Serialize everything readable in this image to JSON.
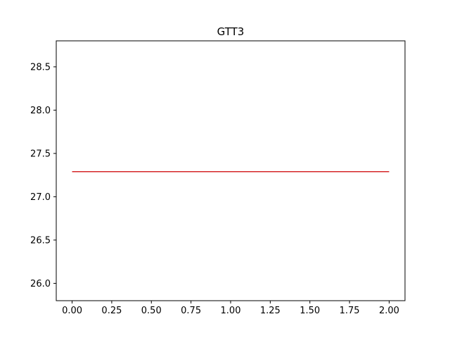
{
  "chart_data": {
    "type": "line",
    "title": "GTT3",
    "xlabel": "",
    "ylabel": "",
    "xlim": [
      -0.1,
      2.1
    ],
    "ylim": [
      25.8,
      28.8
    ],
    "xticks": [
      0.0,
      0.25,
      0.5,
      0.75,
      1.0,
      1.25,
      1.5,
      1.75,
      2.0
    ],
    "xtick_labels": [
      "0.00",
      "0.25",
      "0.50",
      "0.75",
      "1.00",
      "1.25",
      "1.50",
      "1.75",
      "2.00"
    ],
    "yticks": [
      26.0,
      26.5,
      27.0,
      27.5,
      28.0,
      28.5
    ],
    "ytick_labels": [
      "26.0",
      "26.5",
      "27.0",
      "27.5",
      "28.0",
      "28.5"
    ],
    "grid": false,
    "series": [
      {
        "color": "#d62728",
        "x": [
          0.0,
          2.0
        ],
        "y": [
          27.29,
          27.29
        ]
      }
    ]
  }
}
